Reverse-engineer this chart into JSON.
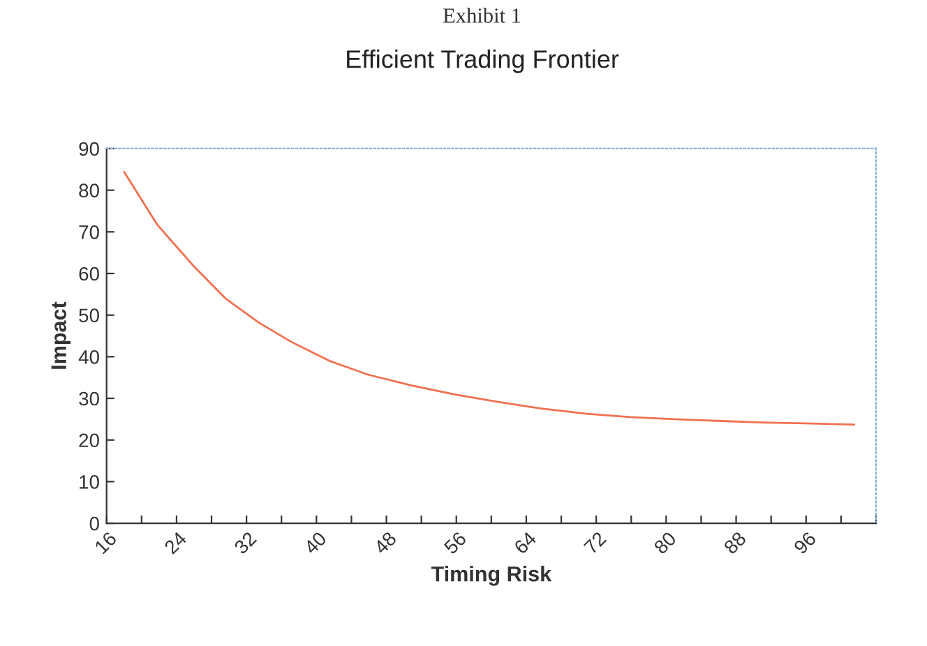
{
  "chart_data": {
    "type": "line",
    "title": "Efficient Trading Frontier",
    "xlabel": "Timing Risk",
    "ylabel": "Impact",
    "annotations": [
      "Exhibit 1"
    ],
    "x": [
      18,
      21.8,
      25.9,
      29.6,
      33.4,
      37.1,
      41.5,
      45.9,
      50.9,
      55.9,
      60.9,
      65.9,
      70.9,
      75.9,
      80.9,
      85.9,
      90.9,
      95.9,
      101.5
    ],
    "series": [
      {
        "color": "#f07050",
        "values": [
          84.4,
          71.7,
          61.9,
          54,
          48.2,
          43.6,
          39,
          35.7,
          33.1,
          30.9,
          29.1,
          27.5,
          26.3,
          25.5,
          25,
          24.6,
          24.2,
          24,
          23.7
        ]
      }
    ],
    "xlim": [
      16,
      104
    ],
    "xticks": [
      16,
      {
        "value": 20,
        "label": null
      },
      24,
      {
        "value": 28,
        "label": null
      },
      32,
      {
        "value": 36,
        "label": null
      },
      40,
      {
        "value": 44,
        "label": null
      },
      48,
      {
        "value": 52,
        "label": null
      },
      56,
      {
        "value": 60,
        "label": null
      },
      64,
      {
        "value": 68,
        "label": null
      },
      72,
      {
        "value": 76,
        "label": null
      },
      80,
      {
        "value": 84,
        "label": null
      },
      88,
      {
        "value": 92,
        "label": null
      },
      96,
      {
        "value": 100,
        "label": null
      },
      {
        "value": 104,
        "label": null
      }
    ],
    "ylim": [
      0,
      90
    ],
    "yticks": [
      0,
      10,
      20,
      30,
      40,
      50,
      60,
      70,
      80,
      90
    ],
    "grid": false,
    "legend": false,
    "marker": "none",
    "line_style": "solid"
  }
}
